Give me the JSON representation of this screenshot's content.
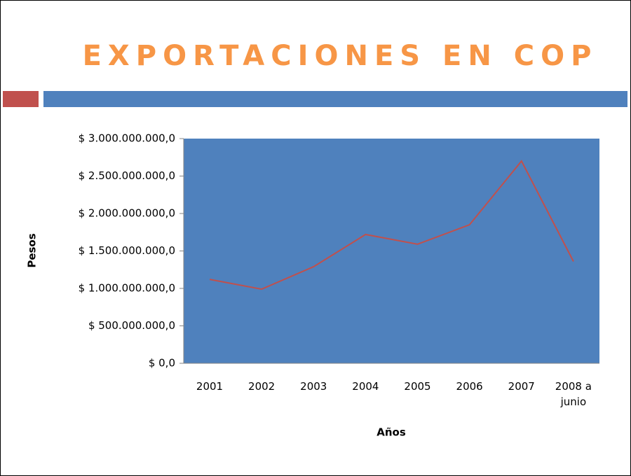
{
  "chart_data": {
    "type": "line",
    "title": "EXPORTACIONES EN COP",
    "x_label": "Años",
    "y_label": "Pesos",
    "categories": [
      "2001",
      "2002",
      "2003",
      "2004",
      "2005",
      "2006",
      "2007",
      "2008 a junio"
    ],
    "series": [
      {
        "name": "Pesos",
        "color": "#c0504d",
        "values": [
          1120000000,
          990000000,
          1290000000,
          1720000000,
          1590000000,
          1850000000,
          2700000000,
          1360000000
        ]
      }
    ],
    "ylim": [
      0,
      3000000000
    ],
    "yticks": [
      {
        "value": 0,
        "label": "$ 0,0"
      },
      {
        "value": 500000000,
        "label": "$ 500.000.000,0"
      },
      {
        "value": 1000000000,
        "label": "$ 1.000.000.000,0"
      },
      {
        "value": 1500000000,
        "label": "$ 1.500.000.000,0"
      },
      {
        "value": 2000000000,
        "label": "$ 2.000.000.000,0"
      },
      {
        "value": 2500000000,
        "label": "$ 2.500.000.000,0"
      },
      {
        "value": 3000000000,
        "label": "$ 3.000.000.000,0"
      }
    ],
    "plot_background": "#4f81bd",
    "grid": false
  }
}
